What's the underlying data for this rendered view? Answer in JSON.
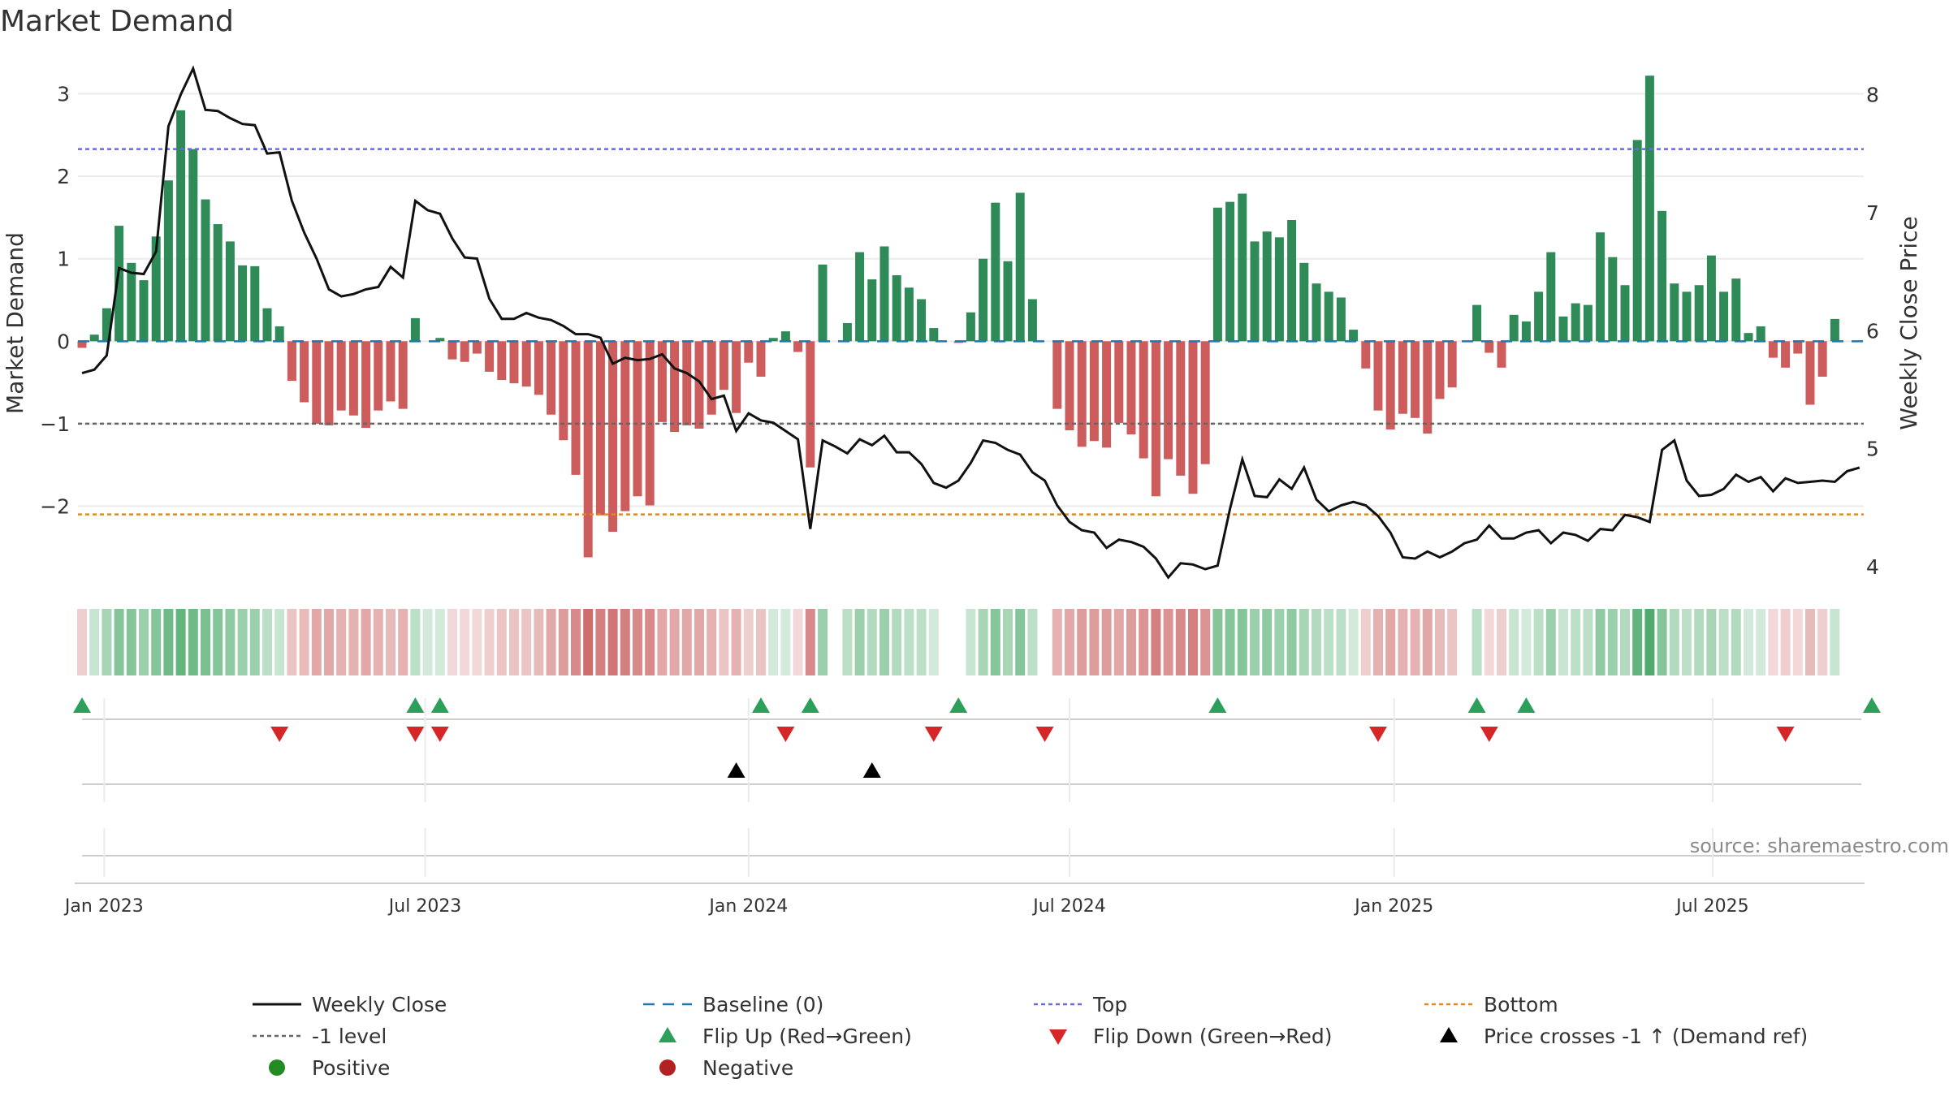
{
  "chart_data": {
    "type": "bar",
    "title": "Market Demand",
    "ylabel": "Market Demand",
    "y2label": "Weekly Close Price",
    "source": "source: sharemaestro.com",
    "ylim": [
      -2.95,
      3.35
    ],
    "y2lim": [
      3.85,
      8.25
    ],
    "yticks": [
      {
        "v": 3,
        "t": "3"
      },
      {
        "v": 2,
        "t": "2"
      },
      {
        "v": 1,
        "t": "1"
      },
      {
        "v": 0,
        "t": "0"
      },
      {
        "v": -1,
        "t": "−1"
      },
      {
        "v": -2,
        "t": "−2"
      }
    ],
    "y2ticks": [
      {
        "v": 8,
        "t": "8"
      },
      {
        "v": 7,
        "t": "7"
      },
      {
        "v": 6,
        "t": "6"
      },
      {
        "v": 5,
        "t": "5"
      },
      {
        "v": 4,
        "t": "4"
      }
    ],
    "xticks": [
      {
        "week": 1.8,
        "label": "Jan 2023"
      },
      {
        "week": 27.8,
        "label": "Jul 2023"
      },
      {
        "week": 54.0,
        "label": "Jan 2024"
      },
      {
        "week": 80.0,
        "label": "Jul 2024"
      },
      {
        "week": 106.3,
        "label": "Jan 2025"
      },
      {
        "week": 132.1,
        "label": "Jul 2025"
      }
    ],
    "levels": {
      "top": 2.33,
      "minus_one": -1.0,
      "bottom": -2.1,
      "baseline": 0
    },
    "demand": [
      -0.08,
      0.08,
      0.4,
      1.4,
      0.95,
      0.74,
      1.27,
      1.95,
      2.8,
      2.33,
      1.72,
      1.42,
      1.21,
      0.92,
      0.91,
      0.4,
      0.18,
      -0.48,
      -0.74,
      -1.0,
      -1.02,
      -0.84,
      -0.9,
      -1.05,
      -0.84,
      -0.73,
      -0.82,
      0.28,
      0.0,
      0.04,
      -0.22,
      -0.25,
      -0.15,
      -0.37,
      -0.47,
      -0.51,
      -0.55,
      -0.65,
      -0.89,
      -1.2,
      -1.62,
      -2.62,
      -2.11,
      -2.31,
      -2.06,
      -1.88,
      -1.99,
      -0.98,
      -1.1,
      -1.02,
      -1.06,
      -0.89,
      -0.59,
      -0.87,
      -0.26,
      -0.43,
      0.04,
      0.12,
      -0.13,
      -1.53,
      0.93,
      0.0,
      0.22,
      1.08,
      0.75,
      1.15,
      0.8,
      0.65,
      0.51,
      0.16,
      0.0,
      -0.02,
      0.35,
      1.0,
      1.68,
      0.97,
      1.8,
      0.51,
      0.0,
      -0.82,
      -1.08,
      -1.28,
      -1.21,
      -1.29,
      -0.99,
      -1.13,
      -1.42,
      -1.88,
      -1.43,
      -1.63,
      -1.85,
      -1.49,
      1.62,
      1.69,
      1.79,
      1.21,
      1.33,
      1.26,
      1.47,
      0.95,
      0.7,
      0.6,
      0.53,
      0.14,
      -0.33,
      -0.84,
      -1.07,
      -0.88,
      -0.93,
      -1.12,
      -0.7,
      -0.56,
      0.0,
      0.44,
      -0.14,
      -0.32,
      0.32,
      0.24,
      0.6,
      1.08,
      0.3,
      0.46,
      0.44,
      1.32,
      1.02,
      0.68,
      2.44,
      3.22,
      1.58,
      0.7,
      0.6,
      0.68,
      1.04,
      0.6,
      0.76,
      0.1,
      0.18,
      -0.2,
      -0.32,
      -0.15,
      -0.77,
      -0.43,
      0.27
    ],
    "weekly_close": [
      5.64,
      5.67,
      5.79,
      6.53,
      6.49,
      6.48,
      6.67,
      7.73,
      8.0,
      8.22,
      7.87,
      7.86,
      7.8,
      7.75,
      7.74,
      7.5,
      7.51,
      7.1,
      6.83,
      6.61,
      6.35,
      6.29,
      6.31,
      6.35,
      6.37,
      6.54,
      6.45,
      7.1,
      7.02,
      6.99,
      6.78,
      6.62,
      6.61,
      6.27,
      6.1,
      6.1,
      6.15,
      6.11,
      6.09,
      6.04,
      5.97,
      5.97,
      5.94,
      5.72,
      5.77,
      5.75,
      5.76,
      5.8,
      5.68,
      5.64,
      5.57,
      5.42,
      5.45,
      5.15,
      5.3,
      5.24,
      5.22,
      5.15,
      5.08,
      4.32,
      5.07,
      5.02,
      4.96,
      5.08,
      5.03,
      5.11,
      4.97,
      4.97,
      4.87,
      4.71,
      4.67,
      4.73,
      4.88,
      5.07,
      5.05,
      4.99,
      4.95,
      4.8,
      4.73,
      4.52,
      4.38,
      4.31,
      4.29,
      4.16,
      4.23,
      4.21,
      4.17,
      4.07,
      3.91,
      4.03,
      4.02,
      3.98,
      4.01,
      4.49,
      4.91,
      4.6,
      4.59,
      4.74,
      4.66,
      4.84,
      4.57,
      4.47,
      4.52,
      4.55,
      4.52,
      4.43,
      4.29,
      4.08,
      4.07,
      4.13,
      4.08,
      4.13,
      4.2,
      4.23,
      4.35,
      4.24,
      4.24,
      4.29,
      4.31,
      4.2,
      4.29,
      4.27,
      4.22,
      4.32,
      4.31,
      4.44,
      4.42,
      4.38,
      4.99,
      5.07,
      4.73,
      4.6,
      4.61,
      4.66,
      4.78,
      4.72,
      4.76,
      4.64,
      4.75,
      4.71,
      4.72,
      4.73,
      4.72,
      4.81,
      4.84
    ],
    "strip_intensity": [
      0.25,
      0.25,
      0.4,
      0.55,
      0.55,
      0.45,
      0.55,
      0.65,
      0.7,
      0.65,
      0.6,
      0.55,
      0.5,
      0.45,
      0.45,
      0.3,
      0.25,
      0.3,
      0.35,
      0.45,
      0.45,
      0.4,
      0.4,
      0.45,
      0.4,
      0.35,
      0.4,
      0.3,
      0.2,
      0.2,
      0.2,
      0.2,
      0.2,
      0.25,
      0.3,
      0.3,
      0.3,
      0.35,
      0.45,
      0.5,
      0.6,
      0.75,
      0.65,
      0.7,
      0.65,
      0.6,
      0.6,
      0.45,
      0.45,
      0.45,
      0.45,
      0.4,
      0.3,
      0.4,
      0.25,
      0.3,
      0.2,
      0.2,
      0.2,
      0.6,
      0.45,
      0.0,
      0.3,
      0.45,
      0.35,
      0.45,
      0.35,
      0.3,
      0.3,
      0.2,
      0.0,
      0.0,
      0.25,
      0.4,
      0.55,
      0.4,
      0.55,
      0.3,
      0.0,
      0.4,
      0.45,
      0.5,
      0.5,
      0.5,
      0.45,
      0.5,
      0.55,
      0.65,
      0.55,
      0.6,
      0.65,
      0.55,
      0.55,
      0.55,
      0.55,
      0.45,
      0.5,
      0.45,
      0.5,
      0.4,
      0.35,
      0.3,
      0.3,
      0.2,
      0.25,
      0.4,
      0.45,
      0.4,
      0.4,
      0.45,
      0.35,
      0.3,
      0.0,
      0.3,
      0.2,
      0.25,
      0.25,
      0.2,
      0.3,
      0.45,
      0.25,
      0.3,
      0.3,
      0.5,
      0.45,
      0.35,
      0.7,
      0.8,
      0.55,
      0.35,
      0.3,
      0.35,
      0.4,
      0.3,
      0.35,
      0.2,
      0.2,
      0.2,
      0.25,
      0.2,
      0.35,
      0.25,
      0.25
    ],
    "flip_up_weeks": [
      0,
      27,
      29,
      55,
      59,
      71,
      92,
      113,
      117,
      145
    ],
    "flip_down_weeks": [
      16,
      27,
      29,
      57,
      69,
      78,
      105,
      114,
      138
    ],
    "price_cross_weeks": [
      53,
      64
    ],
    "legend": [
      {
        "key": "weekly_close",
        "label": "Weekly Close",
        "marker": "line",
        "color": "#111111"
      },
      {
        "key": "baseline",
        "label": "Baseline (0)",
        "marker": "dash",
        "color": "#1f77b4"
      },
      {
        "key": "top",
        "label": "Top",
        "marker": "dot",
        "color": "#6b6bd6"
      },
      {
        "key": "bottom",
        "label": "Bottom",
        "marker": "dot",
        "color": "#e08a1e"
      },
      {
        "key": "minus_one",
        "label": "-1 level",
        "marker": "dot",
        "color": "#666666"
      },
      {
        "key": "flip_up",
        "label": "Flip Up (Red→Green)",
        "marker": "tri-up",
        "color": "#2ca05a"
      },
      {
        "key": "flip_down",
        "label": "Flip Down (Green→Red)",
        "marker": "tri-down",
        "color": "#d62728"
      },
      {
        "key": "price_cross",
        "label": "Price crosses -1 ↑ (Demand ref)",
        "marker": "tri-up",
        "color": "#000000"
      },
      {
        "key": "positive",
        "label": "Positive",
        "marker": "circle",
        "color": "#228b22"
      },
      {
        "key": "negative",
        "label": "Negative",
        "marker": "circle",
        "color": "#b22222"
      }
    ],
    "colors": {
      "positive_bar": "#2e8b57",
      "negative_bar": "#cd5c5c",
      "grid": "#ebebeb"
    }
  }
}
